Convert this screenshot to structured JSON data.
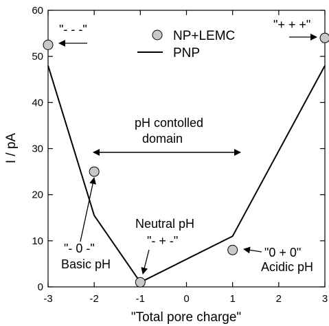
{
  "chart_data": {
    "type": "line",
    "xlabel": "\"Total pore charge\"",
    "ylabel": "I / pA",
    "xlim": [
      -3,
      3
    ],
    "ylim": [
      0,
      60
    ],
    "xticks": [
      -3,
      -2,
      -1,
      0,
      1,
      2,
      3
    ],
    "yticks": [
      0,
      10,
      20,
      30,
      40,
      50,
      60
    ],
    "legend_position": "top-center",
    "series": [
      {
        "name": "NP+LEMC",
        "kind": "scatter",
        "marker": "circle",
        "color": "#c8c8c8",
        "points": [
          {
            "x": -3,
            "y": 52.5
          },
          {
            "x": -2,
            "y": 25
          },
          {
            "x": -1,
            "y": 1
          },
          {
            "x": 1,
            "y": 8
          },
          {
            "x": 3,
            "y": 54
          }
        ]
      },
      {
        "name": "PNP",
        "kind": "line",
        "color": "#000000",
        "points": [
          {
            "x": -3,
            "y": 48
          },
          {
            "x": -2,
            "y": 15.5
          },
          {
            "x": -1,
            "y": 1
          },
          {
            "x": 1,
            "y": 11
          },
          {
            "x": 3,
            "y": 48
          }
        ]
      }
    ],
    "annotations": {
      "label_neg": "\"- - -\"",
      "label_pos": "\"+ + +\"",
      "domain_line1": "pH contolled",
      "domain_line2": "domain",
      "neutral_title": "Neutral pH",
      "neutral_label": "\"- + -\"",
      "basic_label": "\"- 0 -\"",
      "basic_title": "Basic pH",
      "acidic_label": "\"0 + 0\"",
      "acidic_title": "Acidic pH"
    }
  }
}
